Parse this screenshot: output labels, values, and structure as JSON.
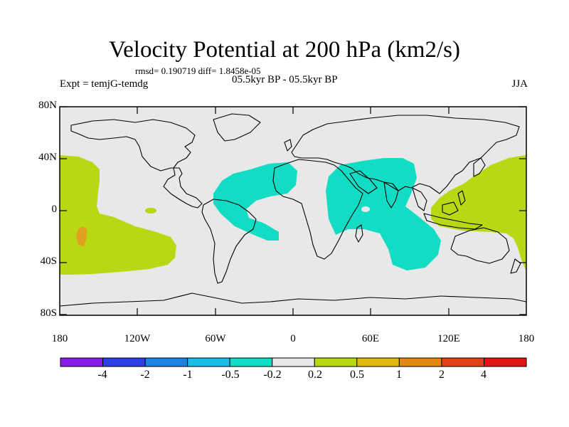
{
  "title": "Velocity Potential at 200 hPa (km2/s)",
  "stats_line": "rmsd= 0.190719  diff= 1.8458e-05",
  "experiment": "Expt = temjG-temdg",
  "period": "05.5kyr BP - 05.5kyr BP",
  "season": "JJA",
  "lat_labels": [
    "80N",
    "40N",
    "0",
    "40S",
    "80S"
  ],
  "lon_labels": [
    "180",
    "120W",
    "60W",
    "0",
    "60E",
    "120E",
    "180"
  ],
  "colorbar": {
    "colors": [
      "#8a1be6",
      "#2d3ee4",
      "#1b82e0",
      "#19bde6",
      "#12dcc4",
      "#e8e8e8",
      "#b9d814",
      "#e0b812",
      "#e08a12",
      "#e0421a",
      "#e01414"
    ],
    "labels": [
      "-4",
      "-2",
      "-1",
      "-0.5",
      "-0.2",
      "0.2",
      "0.5",
      "1",
      "2",
      "4"
    ]
  },
  "colors": {
    "ocean": "#e8e8e8",
    "positive_anomaly": "#b9d814",
    "negative_anomaly": "#12dcc4",
    "strong_positive": "#e0a020",
    "coast": "#000000"
  }
}
